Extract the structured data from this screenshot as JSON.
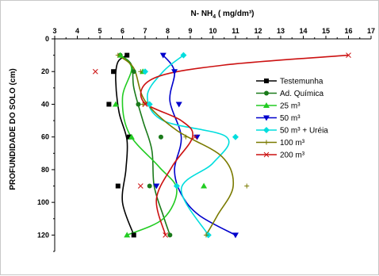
{
  "chart_data": {
    "type": "line",
    "xlabel": "N- NH4 ( mg/dm³)",
    "xlabel_parts": {
      "main": "N- NH",
      "sub": "4",
      "rest": " ( mg/dm³)"
    },
    "ylabel": "PROFUNDIDADE DO SOLO (cm)",
    "xlim": [
      3,
      17
    ],
    "ylim": [
      0,
      130
    ],
    "x_axis_position": "top",
    "y_inverted": true,
    "grid": false,
    "legend_position": "right",
    "xticks": [
      3,
      4,
      5,
      6,
      7,
      8,
      9,
      10,
      11,
      12,
      13,
      14,
      15,
      16,
      17
    ],
    "xtick_labels": [
      "3",
      "4",
      "5",
      "6",
      "7",
      "8",
      "9",
      "10",
      "11",
      "12",
      "13",
      "14",
      "15",
      "16",
      "17"
    ],
    "yticks": [
      0,
      20,
      40,
      60,
      80,
      100,
      120
    ],
    "ytick_labels": [
      "0",
      "20",
      "40",
      "60",
      "80",
      "100",
      "120"
    ],
    "series": [
      {
        "name": "Testemunha",
        "color": "#000000",
        "marker": "square",
        "points": [
          [
            6.2,
            10
          ],
          [
            5.6,
            20
          ],
          [
            5.4,
            40
          ],
          [
            6.3,
            60
          ],
          [
            5.8,
            90
          ],
          [
            6.5,
            120
          ]
        ],
        "curve": [
          [
            6.2,
            10
          ],
          [
            5.8,
            14
          ],
          [
            5.7,
            25
          ],
          [
            5.85,
            45
          ],
          [
            6.2,
            62
          ],
          [
            6.15,
            80
          ],
          [
            6.0,
            100
          ],
          [
            6.5,
            120
          ]
        ]
      },
      {
        "name": "Ad. Química",
        "color": "#1a7a1a",
        "marker": "circle",
        "points": [
          [
            5.9,
            10
          ],
          [
            6.5,
            20
          ],
          [
            6.7,
            40
          ],
          [
            7.7,
            60
          ],
          [
            7.2,
            90
          ],
          [
            8.1,
            120
          ]
        ],
        "curve": [
          [
            5.9,
            10
          ],
          [
            6.4,
            16
          ],
          [
            6.5,
            30
          ],
          [
            6.9,
            50
          ],
          [
            7.3,
            68
          ],
          [
            7.4,
            90
          ],
          [
            7.8,
            108
          ],
          [
            8.1,
            120
          ]
        ]
      },
      {
        "name": "25 m³",
        "color": "#22cc22",
        "marker": "triangle-up",
        "points": [
          [
            5.9,
            10
          ],
          [
            6.9,
            20
          ],
          [
            5.7,
            40
          ],
          [
            6.4,
            60
          ],
          [
            9.6,
            90
          ],
          [
            6.2,
            120
          ]
        ],
        "curve": [
          [
            5.9,
            10
          ],
          [
            6.4,
            18
          ],
          [
            6.0,
            36
          ],
          [
            6.3,
            58
          ],
          [
            7.6,
            78
          ],
          [
            8.4,
            92
          ],
          [
            7.8,
            110
          ],
          [
            6.2,
            120
          ]
        ]
      },
      {
        "name": "50 m³",
        "color": "#0000cc",
        "marker": "triangle-down",
        "points": [
          [
            7.8,
            10
          ],
          [
            8.3,
            20
          ],
          [
            8.5,
            40
          ],
          [
            9.3,
            60
          ],
          [
            7.5,
            90
          ],
          [
            11.0,
            120
          ]
        ],
        "curve": [
          [
            7.8,
            10
          ],
          [
            8.3,
            20
          ],
          [
            8.1,
            38
          ],
          [
            8.6,
            60
          ],
          [
            8.3,
            80
          ],
          [
            8.6,
            95
          ],
          [
            9.4,
            108
          ],
          [
            11.0,
            120
          ]
        ]
      },
      {
        "name": "50 m³ + Uréia",
        "color": "#00dddd",
        "marker": "diamond",
        "points": [
          [
            8.7,
            10
          ],
          [
            7.0,
            20
          ],
          [
            7.2,
            40
          ],
          [
            11.0,
            60
          ],
          [
            8.4,
            90
          ],
          [
            9.8,
            120
          ]
        ],
        "curve": [
          [
            8.7,
            10
          ],
          [
            7.8,
            20
          ],
          [
            7.1,
            35
          ],
          [
            7.8,
            50
          ],
          [
            10.6,
            60
          ],
          [
            10.0,
            76
          ],
          [
            8.6,
            92
          ],
          [
            9.8,
            120
          ]
        ]
      },
      {
        "name": "100 m³",
        "color": "#7a7a00",
        "marker": "plus",
        "points": [
          [
            5.8,
            10
          ],
          [
            6.8,
            20
          ],
          [
            6.9,
            40
          ],
          [
            8.8,
            60
          ],
          [
            11.5,
            90
          ],
          [
            9.7,
            120
          ]
        ],
        "curve": [
          [
            5.8,
            10
          ],
          [
            6.5,
            18
          ],
          [
            7.0,
            38
          ],
          [
            8.4,
            56
          ],
          [
            10.4,
            72
          ],
          [
            10.9,
            90
          ],
          [
            10.2,
            108
          ],
          [
            9.7,
            120
          ]
        ]
      },
      {
        "name": "200 m³",
        "color": "#cc1111",
        "marker": "x",
        "points": [
          [
            16.0,
            10
          ],
          [
            4.8,
            20
          ],
          [
            7.0,
            40
          ],
          [
            9.2,
            60
          ],
          [
            6.8,
            90
          ],
          [
            7.9,
            120
          ]
        ],
        "curve": [
          [
            16.0,
            10
          ],
          [
            10.5,
            16
          ],
          [
            7.4,
            24
          ],
          [
            6.9,
            38
          ],
          [
            8.6,
            50
          ],
          [
            9.1,
            60
          ],
          [
            8.2,
            78
          ],
          [
            7.5,
            98
          ],
          [
            7.9,
            120
          ]
        ]
      }
    ]
  }
}
